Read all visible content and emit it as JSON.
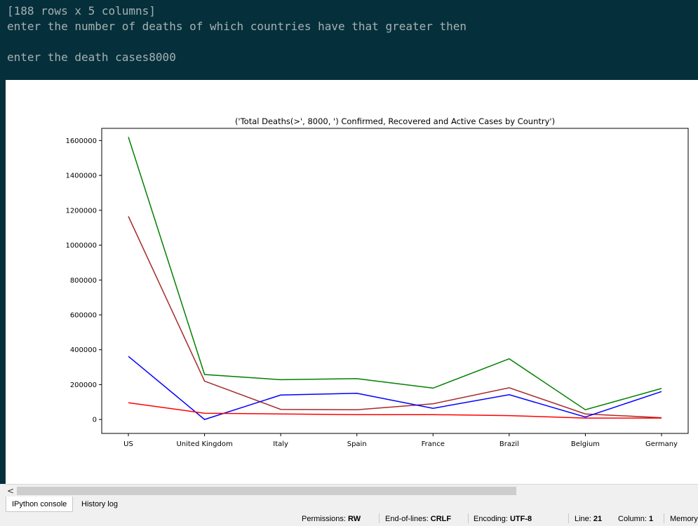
{
  "console": {
    "lines": [
      "[188 rows x 5 columns]",
      "enter the number of deaths of which countries have that greater then",
      "enter the death cases8000"
    ]
  },
  "chart_data": {
    "type": "line",
    "title": "('Total Deaths(>', 8000, ') Confirmed, Recovered and Active Cases by Country')",
    "categories": [
      "US",
      "United Kingdom",
      "Italy",
      "Spain",
      "France",
      "Brazil",
      "Belgium",
      "Germany"
    ],
    "ylim": [
      -80000,
      1670000
    ],
    "yticks": [
      0,
      200000,
      400000,
      600000,
      800000,
      1000000,
      1200000,
      1400000,
      1600000
    ],
    "ytick_labels": [
      "0",
      "200000",
      "400000",
      "600000",
      "800000",
      "1000000",
      "1200000",
      "1400000",
      "1600000"
    ],
    "grid": false,
    "legend": "none",
    "series": [
      {
        "color": "#008000",
        "values": [
          1620000,
          258000,
          228000,
          234000,
          180000,
          348000,
          56000,
          178000
        ]
      },
      {
        "color": "#a52a2a",
        "values": [
          1165000,
          220000,
          58000,
          56000,
          90000,
          182000,
          32000,
          10000
        ]
      },
      {
        "color": "#0000ff",
        "values": [
          362000,
          0,
          140000,
          150000,
          64000,
          142000,
          14000,
          160000
        ]
      },
      {
        "color": "#ff0000",
        "values": [
          96000,
          36000,
          32000,
          28000,
          28000,
          22000,
          8000,
          8000
        ]
      }
    ]
  },
  "scrollbar": {
    "left_arrow": "<"
  },
  "tabs": [
    {
      "label": "IPython console",
      "active": true
    },
    {
      "label": "History log",
      "active": false
    }
  ],
  "status": {
    "permissions_label": "Permissions:",
    "permissions_value": "RW",
    "eol_label": "End-of-lines:",
    "eol_value": "CRLF",
    "encoding_label": "Encoding:",
    "encoding_value": "UTF-8",
    "line_label": "Line:",
    "line_value": "21",
    "column_label": "Column:",
    "column_value": "1",
    "memory_label": "Memory:"
  }
}
